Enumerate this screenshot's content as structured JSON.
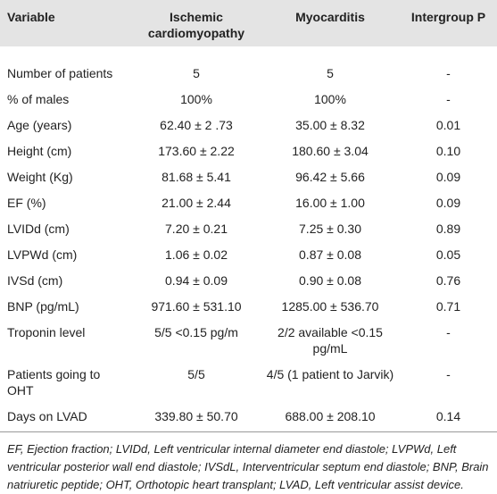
{
  "table": {
    "columns": [
      "Variable",
      "Ischemic cardiomyopathy",
      "Myocarditis",
      "Intergroup P"
    ],
    "rows": [
      [
        "Number of patients",
        "5",
        "5",
        "-"
      ],
      [
        "% of males",
        "100%",
        "100%",
        "-"
      ],
      [
        "Age (years)",
        "62.40 ± 2 .73",
        "35.00 ± 8.32",
        "0.01"
      ],
      [
        "Height (cm)",
        "173.60 ± 2.22",
        "180.60 ± 3.04",
        "0.10"
      ],
      [
        "Weight (Kg)",
        "81.68 ± 5.41",
        "96.42 ± 5.66",
        "0.09"
      ],
      [
        "EF (%)",
        "21.00 ± 2.44",
        "16.00 ± 1.00",
        "0.09"
      ],
      [
        "LVIDd (cm)",
        "7.20 ± 0.21",
        "7.25 ± 0.30",
        "0.89"
      ],
      [
        "LVPWd (cm)",
        "1.06 ± 0.02",
        "0.87 ± 0.08",
        "0.05"
      ],
      [
        "IVSd (cm)",
        "0.94 ± 0.09",
        "0.90 ± 0.08",
        "0.76"
      ],
      [
        "BNP (pg/mL)",
        "971.60 ± 531.10",
        "1285.00 ± 536.70",
        "0.71"
      ],
      [
        "Troponin level",
        "5/5 <0.15 pg/m",
        "2/2 available <0.15 pg/mL",
        "-"
      ],
      [
        "Patients going to OHT",
        "5/5",
        "4/5 (1 patient to Jarvik)",
        "-"
      ],
      [
        "Days on LVAD",
        "339.80 ± 50.70",
        "688.00 ± 208.10",
        "0.14"
      ]
    ],
    "footnote": "EF, Ejection fraction; LVIDd, Left ventricular internal diameter end diastole; LVPWd, Left ventricular posterior wall end diastole; IVSdL, Interventricular septum end diastole; BNP, Brain natriuretic peptide; OHT, Orthotopic heart transplant; LVAD, Left ventricular assist device."
  }
}
